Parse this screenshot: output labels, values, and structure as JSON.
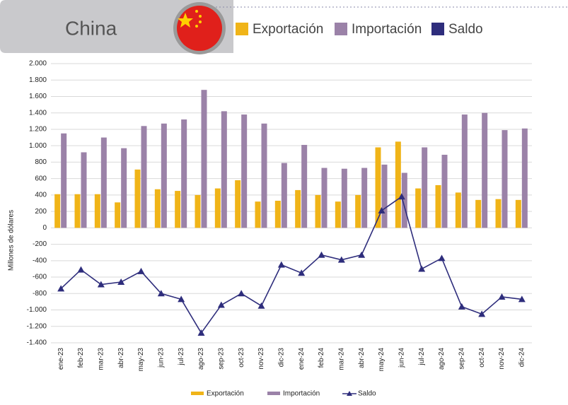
{
  "chart_data": {
    "type": "bar-line",
    "title": "China",
    "ylabel": "Millones de dólares",
    "categories": [
      "ene-23",
      "feb-23",
      "mar-23",
      "abr-23",
      "may-23",
      "jun-23",
      "jul-23",
      "ago-23",
      "sep-23",
      "oct-23",
      "nov-23",
      "dic-23",
      "ene-24",
      "feb-24",
      "mar-24",
      "abr-24",
      "may-24",
      "jun-24",
      "jul-24",
      "ago-24",
      "sep-24",
      "oct-24",
      "nov-24",
      "dic-24"
    ],
    "series": [
      {
        "name": "Exportación",
        "color": "#f0b418",
        "kind": "bar",
        "values": [
          410,
          410,
          410,
          310,
          710,
          470,
          450,
          400,
          480,
          580,
          320,
          330,
          460,
          400,
          320,
          400,
          980,
          1050,
          480,
          520,
          430,
          340,
          350,
          340
        ]
      },
      {
        "name": "Importación",
        "color": "#9b82a8",
        "kind": "bar",
        "values": [
          1150,
          920,
          1100,
          970,
          1240,
          1270,
          1320,
          1680,
          1420,
          1380,
          1270,
          790,
          1010,
          730,
          720,
          730,
          770,
          670,
          980,
          890,
          1380,
          1400,
          1190,
          1210
        ]
      },
      {
        "name": "Saldo",
        "color": "#2e2d7c",
        "kind": "line",
        "values": [
          -740,
          -510,
          -690,
          -660,
          -530,
          -800,
          -870,
          -1280,
          -940,
          -800,
          -950,
          -450,
          -550,
          -330,
          -390,
          -330,
          210,
          380,
          -500,
          -370,
          -960,
          -1050,
          -840,
          -870
        ]
      }
    ],
    "ylim": [
      -1400,
      2000
    ],
    "yticks": [
      {
        "value": 2000,
        "label": "2.000"
      },
      {
        "value": 1800,
        "label": "1.800"
      },
      {
        "value": 1600,
        "label": "1.600"
      },
      {
        "value": 1400,
        "label": "1.400"
      },
      {
        "value": 1200,
        "label": "1.200"
      },
      {
        "value": 1000,
        "label": "1.000"
      },
      800,
      600,
      400,
      200,
      0,
      -200,
      -400,
      -600,
      -800,
      {
        "value": -1000,
        "label": "-1.000"
      },
      {
        "value": -1200,
        "label": "-1.200"
      },
      {
        "value": -1400,
        "label": "-1.400"
      }
    ],
    "grid": true
  }
}
